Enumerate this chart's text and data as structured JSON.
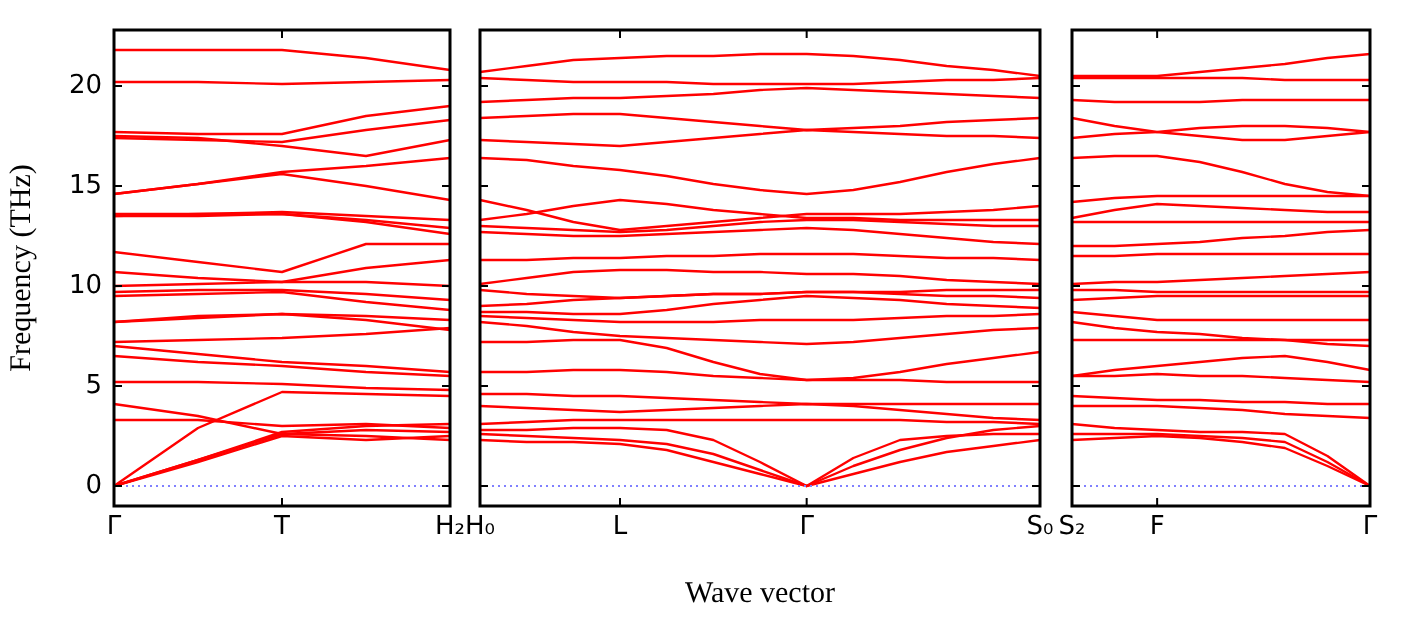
{
  "chart_data": [
    {
      "type": "line",
      "ylabel": "Frequency (THz)",
      "color": "#ff0000",
      "marker": "none",
      "grid": false,
      "categories": [
        "Γ",
        null,
        "T",
        null,
        "H₂"
      ],
      "ylim": [
        -1,
        22.8
      ],
      "yticks": [
        0,
        5,
        10,
        15,
        20
      ],
      "ref_lines": [
        {
          "axis": "y",
          "value": 0,
          "color": "#8080ff",
          "line_style": "dotted"
        }
      ],
      "series": [
        {
          "values": [
            21.8,
            21.8,
            21.8,
            21.4,
            20.8
          ]
        },
        {
          "values": [
            20.2,
            20.2,
            20.1,
            20.2,
            20.3
          ]
        },
        {
          "values": [
            17.7,
            17.6,
            17.6,
            18.5,
            19.0
          ]
        },
        {
          "values": [
            17.4,
            17.3,
            17.2,
            17.8,
            18.3
          ]
        },
        {
          "values": [
            17.5,
            17.4,
            17.0,
            16.5,
            17.3
          ]
        },
        {
          "values": [
            14.6,
            15.1,
            15.7,
            16.0,
            16.4
          ]
        },
        {
          "values": [
            14.6,
            15.1,
            15.6,
            15.0,
            14.3
          ]
        },
        {
          "values": [
            13.6,
            13.6,
            13.7,
            13.5,
            13.3
          ]
        },
        {
          "values": [
            13.5,
            13.6,
            13.6,
            13.3,
            12.9
          ]
        },
        {
          "values": [
            13.5,
            13.5,
            13.6,
            13.2,
            12.6
          ]
        },
        {
          "values": [
            11.7,
            11.2,
            10.7,
            12.1,
            12.1
          ]
        },
        {
          "values": [
            10.7,
            10.4,
            10.2,
            10.9,
            11.3
          ]
        },
        {
          "values": [
            10.0,
            10.1,
            10.2,
            10.2,
            10.0
          ]
        },
        {
          "values": [
            9.7,
            9.8,
            9.8,
            9.6,
            9.3
          ]
        },
        {
          "values": [
            9.5,
            9.6,
            9.7,
            9.2,
            8.8
          ]
        },
        {
          "values": [
            8.2,
            8.5,
            8.6,
            8.5,
            8.3
          ]
        },
        {
          "values": [
            8.2,
            8.4,
            8.6,
            8.3,
            7.8
          ]
        },
        {
          "values": [
            7.2,
            7.3,
            7.4,
            7.6,
            7.9
          ]
        },
        {
          "values": [
            7.0,
            6.6,
            6.2,
            6.0,
            5.7
          ]
        },
        {
          "values": [
            6.5,
            6.2,
            6.0,
            5.7,
            5.5
          ]
        },
        {
          "values": [
            5.2,
            5.2,
            5.1,
            4.9,
            4.8
          ]
        },
        {
          "values": [
            4.1,
            3.5,
            2.6,
            2.5,
            2.3
          ]
        },
        {
          "values": [
            3.3,
            3.3,
            3.0,
            3.1,
            2.9
          ]
        },
        {
          "values": [
            0,
            2.9,
            4.7,
            4.6,
            4.5
          ]
        },
        {
          "values": [
            0,
            1.3,
            2.7,
            3.0,
            3.1
          ]
        },
        {
          "values": [
            0,
            1.3,
            2.6,
            2.8,
            2.7
          ]
        },
        {
          "values": [
            0,
            1.2,
            2.5,
            2.3,
            2.5
          ]
        }
      ]
    },
    {
      "type": "line",
      "xlabel": "Wave vector",
      "color": "#ff0000",
      "marker": "none",
      "grid": false,
      "tick_labels": "x",
      "categories": [
        "H₀",
        null,
        null,
        "L",
        null,
        null,
        null,
        "Γ",
        null,
        null,
        null,
        null,
        "S₀"
      ],
      "ylim": [
        -1,
        22.8
      ],
      "yticks": [
        {
          "value": 0,
          "label": null
        },
        {
          "value": 5,
          "label": null
        },
        {
          "value": 10,
          "label": null
        },
        {
          "value": 15,
          "label": null
        },
        {
          "value": 20,
          "label": null
        }
      ],
      "ref_lines": [
        {
          "axis": "y",
          "value": 0,
          "color": "#8080ff",
          "line_style": "dotted"
        }
      ],
      "series": [
        {
          "values": [
            20.7,
            21.0,
            21.3,
            21.4,
            21.5,
            21.5,
            21.6,
            21.6,
            21.5,
            21.3,
            21.0,
            20.8,
            20.5
          ]
        },
        {
          "values": [
            20.4,
            20.3,
            20.2,
            20.2,
            20.2,
            20.1,
            20.1,
            20.1,
            20.1,
            20.2,
            20.3,
            20.3,
            20.4
          ]
        },
        {
          "values": [
            19.2,
            19.3,
            19.4,
            19.4,
            19.5,
            19.6,
            19.8,
            19.9,
            19.8,
            19.7,
            19.6,
            19.5,
            19.4
          ]
        },
        {
          "values": [
            18.4,
            18.5,
            18.6,
            18.6,
            18.4,
            18.2,
            18.0,
            17.8,
            17.9,
            18.0,
            18.2,
            18.3,
            18.4
          ]
        },
        {
          "values": [
            17.3,
            17.2,
            17.1,
            17.0,
            17.2,
            17.4,
            17.6,
            17.8,
            17.7,
            17.6,
            17.5,
            17.5,
            17.4
          ]
        },
        {
          "values": [
            16.4,
            16.3,
            16.0,
            15.8,
            15.5,
            15.1,
            14.8,
            14.6,
            14.8,
            15.2,
            15.7,
            16.1,
            16.4
          ]
        },
        {
          "values": [
            14.3,
            13.8,
            13.2,
            12.8,
            13.0,
            13.2,
            13.4,
            13.6,
            13.6,
            13.6,
            13.7,
            13.8,
            14.0
          ]
        },
        {
          "values": [
            13.3,
            13.6,
            14.0,
            14.3,
            14.1,
            13.8,
            13.6,
            13.4,
            13.4,
            13.3,
            13.3,
            13.3,
            13.3
          ]
        },
        {
          "values": [
            13.0,
            12.9,
            12.8,
            12.7,
            12.8,
            13.0,
            13.2,
            13.3,
            13.3,
            13.2,
            13.1,
            13.0,
            13.0
          ]
        },
        {
          "values": [
            12.7,
            12.6,
            12.5,
            12.5,
            12.6,
            12.7,
            12.8,
            12.9,
            12.8,
            12.6,
            12.4,
            12.2,
            12.1
          ]
        },
        {
          "values": [
            11.3,
            11.3,
            11.4,
            11.4,
            11.5,
            11.5,
            11.6,
            11.6,
            11.6,
            11.5,
            11.4,
            11.4,
            11.3
          ]
        },
        {
          "values": [
            10.1,
            10.4,
            10.7,
            10.8,
            10.8,
            10.7,
            10.7,
            10.6,
            10.6,
            10.5,
            10.3,
            10.2,
            10.1
          ]
        },
        {
          "values": [
            9.8,
            9.6,
            9.5,
            9.4,
            9.5,
            9.6,
            9.6,
            9.7,
            9.7,
            9.7,
            9.8,
            9.8,
            9.8
          ]
        },
        {
          "values": [
            9.0,
            9.1,
            9.3,
            9.4,
            9.5,
            9.6,
            9.6,
            9.7,
            9.7,
            9.6,
            9.5,
            9.5,
            9.4
          ]
        },
        {
          "values": [
            8.7,
            8.7,
            8.6,
            8.6,
            8.8,
            9.1,
            9.3,
            9.5,
            9.4,
            9.3,
            9.1,
            9.0,
            8.9
          ]
        },
        {
          "values": [
            8.5,
            8.4,
            8.3,
            8.2,
            8.2,
            8.2,
            8.3,
            8.3,
            8.3,
            8.4,
            8.5,
            8.5,
            8.6
          ]
        },
        {
          "values": [
            8.2,
            8.0,
            7.7,
            7.5,
            7.4,
            7.3,
            7.2,
            7.1,
            7.2,
            7.4,
            7.6,
            7.8,
            7.9
          ]
        },
        {
          "values": [
            7.2,
            7.2,
            7.3,
            7.3,
            6.9,
            6.2,
            5.6,
            5.3,
            5.4,
            5.7,
            6.1,
            6.4,
            6.7
          ]
        },
        {
          "values": [
            5.7,
            5.7,
            5.8,
            5.8,
            5.7,
            5.5,
            5.4,
            5.3,
            5.3,
            5.3,
            5.2,
            5.2,
            5.2
          ]
        },
        {
          "values": [
            4.6,
            4.6,
            4.5,
            4.5,
            4.4,
            4.3,
            4.2,
            4.1,
            4.1,
            4.1,
            4.1,
            4.1,
            4.1
          ]
        },
        {
          "values": [
            4.0,
            3.9,
            3.8,
            3.7,
            3.8,
            3.9,
            4.0,
            4.1,
            4.0,
            3.8,
            3.6,
            3.4,
            3.3
          ]
        },
        {
          "values": [
            3.1,
            3.2,
            3.3,
            3.3,
            3.3,
            3.3,
            3.3,
            3.3,
            3.3,
            3.3,
            3.2,
            3.2,
            3.1
          ]
        },
        {
          "values": [
            2.8,
            2.8,
            2.9,
            2.9,
            2.8,
            2.3,
            1.2,
            0,
            1.4,
            2.3,
            2.5,
            2.6,
            2.6
          ]
        },
        {
          "values": [
            2.6,
            2.5,
            2.4,
            2.3,
            2.1,
            1.6,
            0.8,
            0,
            1.0,
            1.8,
            2.4,
            2.8,
            3.0
          ]
        },
        {
          "values": [
            2.3,
            2.2,
            2.2,
            2.1,
            1.8,
            1.2,
            0.6,
            0,
            0.6,
            1.2,
            1.7,
            2.0,
            2.3
          ]
        }
      ]
    },
    {
      "type": "line",
      "color": "#ff0000",
      "marker": "none",
      "grid": false,
      "tick_labels": "x",
      "categories": [
        "S₂",
        null,
        "F",
        null,
        null,
        null,
        null,
        "Γ"
      ],
      "ylim": [
        -1,
        22.8
      ],
      "yticks": [
        {
          "value": 0,
          "label": null
        },
        {
          "value": 5,
          "label": null
        },
        {
          "value": 10,
          "label": null
        },
        {
          "value": 15,
          "label": null
        },
        {
          "value": 20,
          "label": null
        }
      ],
      "ref_lines": [
        {
          "axis": "y",
          "value": 0,
          "color": "#8080ff",
          "line_style": "dotted"
        }
      ],
      "series": [
        {
          "values": [
            20.5,
            20.5,
            20.5,
            20.7,
            20.9,
            21.1,
            21.4,
            21.6
          ]
        },
        {
          "values": [
            20.4,
            20.4,
            20.4,
            20.4,
            20.4,
            20.3,
            20.3,
            20.3
          ]
        },
        {
          "values": [
            19.3,
            19.2,
            19.2,
            19.2,
            19.3,
            19.3,
            19.3,
            19.3
          ]
        },
        {
          "values": [
            18.4,
            18.0,
            17.7,
            17.5,
            17.3,
            17.3,
            17.5,
            17.7
          ]
        },
        {
          "values": [
            17.4,
            17.6,
            17.7,
            17.9,
            18.0,
            18.0,
            17.9,
            17.7
          ]
        },
        {
          "values": [
            16.4,
            16.5,
            16.5,
            16.2,
            15.7,
            15.1,
            14.7,
            14.5
          ]
        },
        {
          "values": [
            14.2,
            14.4,
            14.5,
            14.5,
            14.5,
            14.5,
            14.5,
            14.5
          ]
        },
        {
          "values": [
            13.4,
            13.8,
            14.1,
            14.0,
            13.9,
            13.8,
            13.7,
            13.7
          ]
        },
        {
          "values": [
            13.2,
            13.2,
            13.2,
            13.2,
            13.2,
            13.2,
            13.2,
            13.2
          ]
        },
        {
          "values": [
            12.0,
            12.0,
            12.1,
            12.2,
            12.4,
            12.5,
            12.7,
            12.8
          ]
        },
        {
          "values": [
            11.5,
            11.5,
            11.6,
            11.6,
            11.6,
            11.6,
            11.6,
            11.6
          ]
        },
        {
          "values": [
            10.1,
            10.2,
            10.2,
            10.3,
            10.4,
            10.5,
            10.6,
            10.7
          ]
        },
        {
          "values": [
            9.8,
            9.8,
            9.7,
            9.7,
            9.7,
            9.7,
            9.7,
            9.7
          ]
        },
        {
          "values": [
            9.3,
            9.4,
            9.5,
            9.5,
            9.5,
            9.5,
            9.5,
            9.5
          ]
        },
        {
          "values": [
            8.7,
            8.5,
            8.3,
            8.3,
            8.3,
            8.3,
            8.3,
            8.3
          ]
        },
        {
          "values": [
            8.2,
            7.9,
            7.7,
            7.6,
            7.4,
            7.3,
            7.1,
            7.0
          ]
        },
        {
          "values": [
            7.3,
            7.3,
            7.3,
            7.3,
            7.3,
            7.3,
            7.3,
            7.3
          ]
        },
        {
          "values": [
            5.5,
            5.8,
            6.0,
            6.2,
            6.4,
            6.5,
            6.2,
            5.8
          ]
        },
        {
          "values": [
            5.5,
            5.5,
            5.6,
            5.5,
            5.5,
            5.4,
            5.3,
            5.2
          ]
        },
        {
          "values": [
            4.5,
            4.4,
            4.3,
            4.3,
            4.2,
            4.2,
            4.1,
            4.1
          ]
        },
        {
          "values": [
            4.0,
            4.0,
            4.0,
            3.9,
            3.8,
            3.6,
            3.5,
            3.4
          ]
        },
        {
          "values": [
            3.1,
            2.9,
            2.8,
            2.7,
            2.7,
            2.6,
            1.5,
            0
          ]
        },
        {
          "values": [
            2.6,
            2.6,
            2.6,
            2.5,
            2.4,
            2.2,
            1.2,
            0
          ]
        },
        {
          "values": [
            2.3,
            2.4,
            2.5,
            2.4,
            2.2,
            1.9,
            1.0,
            0
          ]
        }
      ]
    }
  ]
}
